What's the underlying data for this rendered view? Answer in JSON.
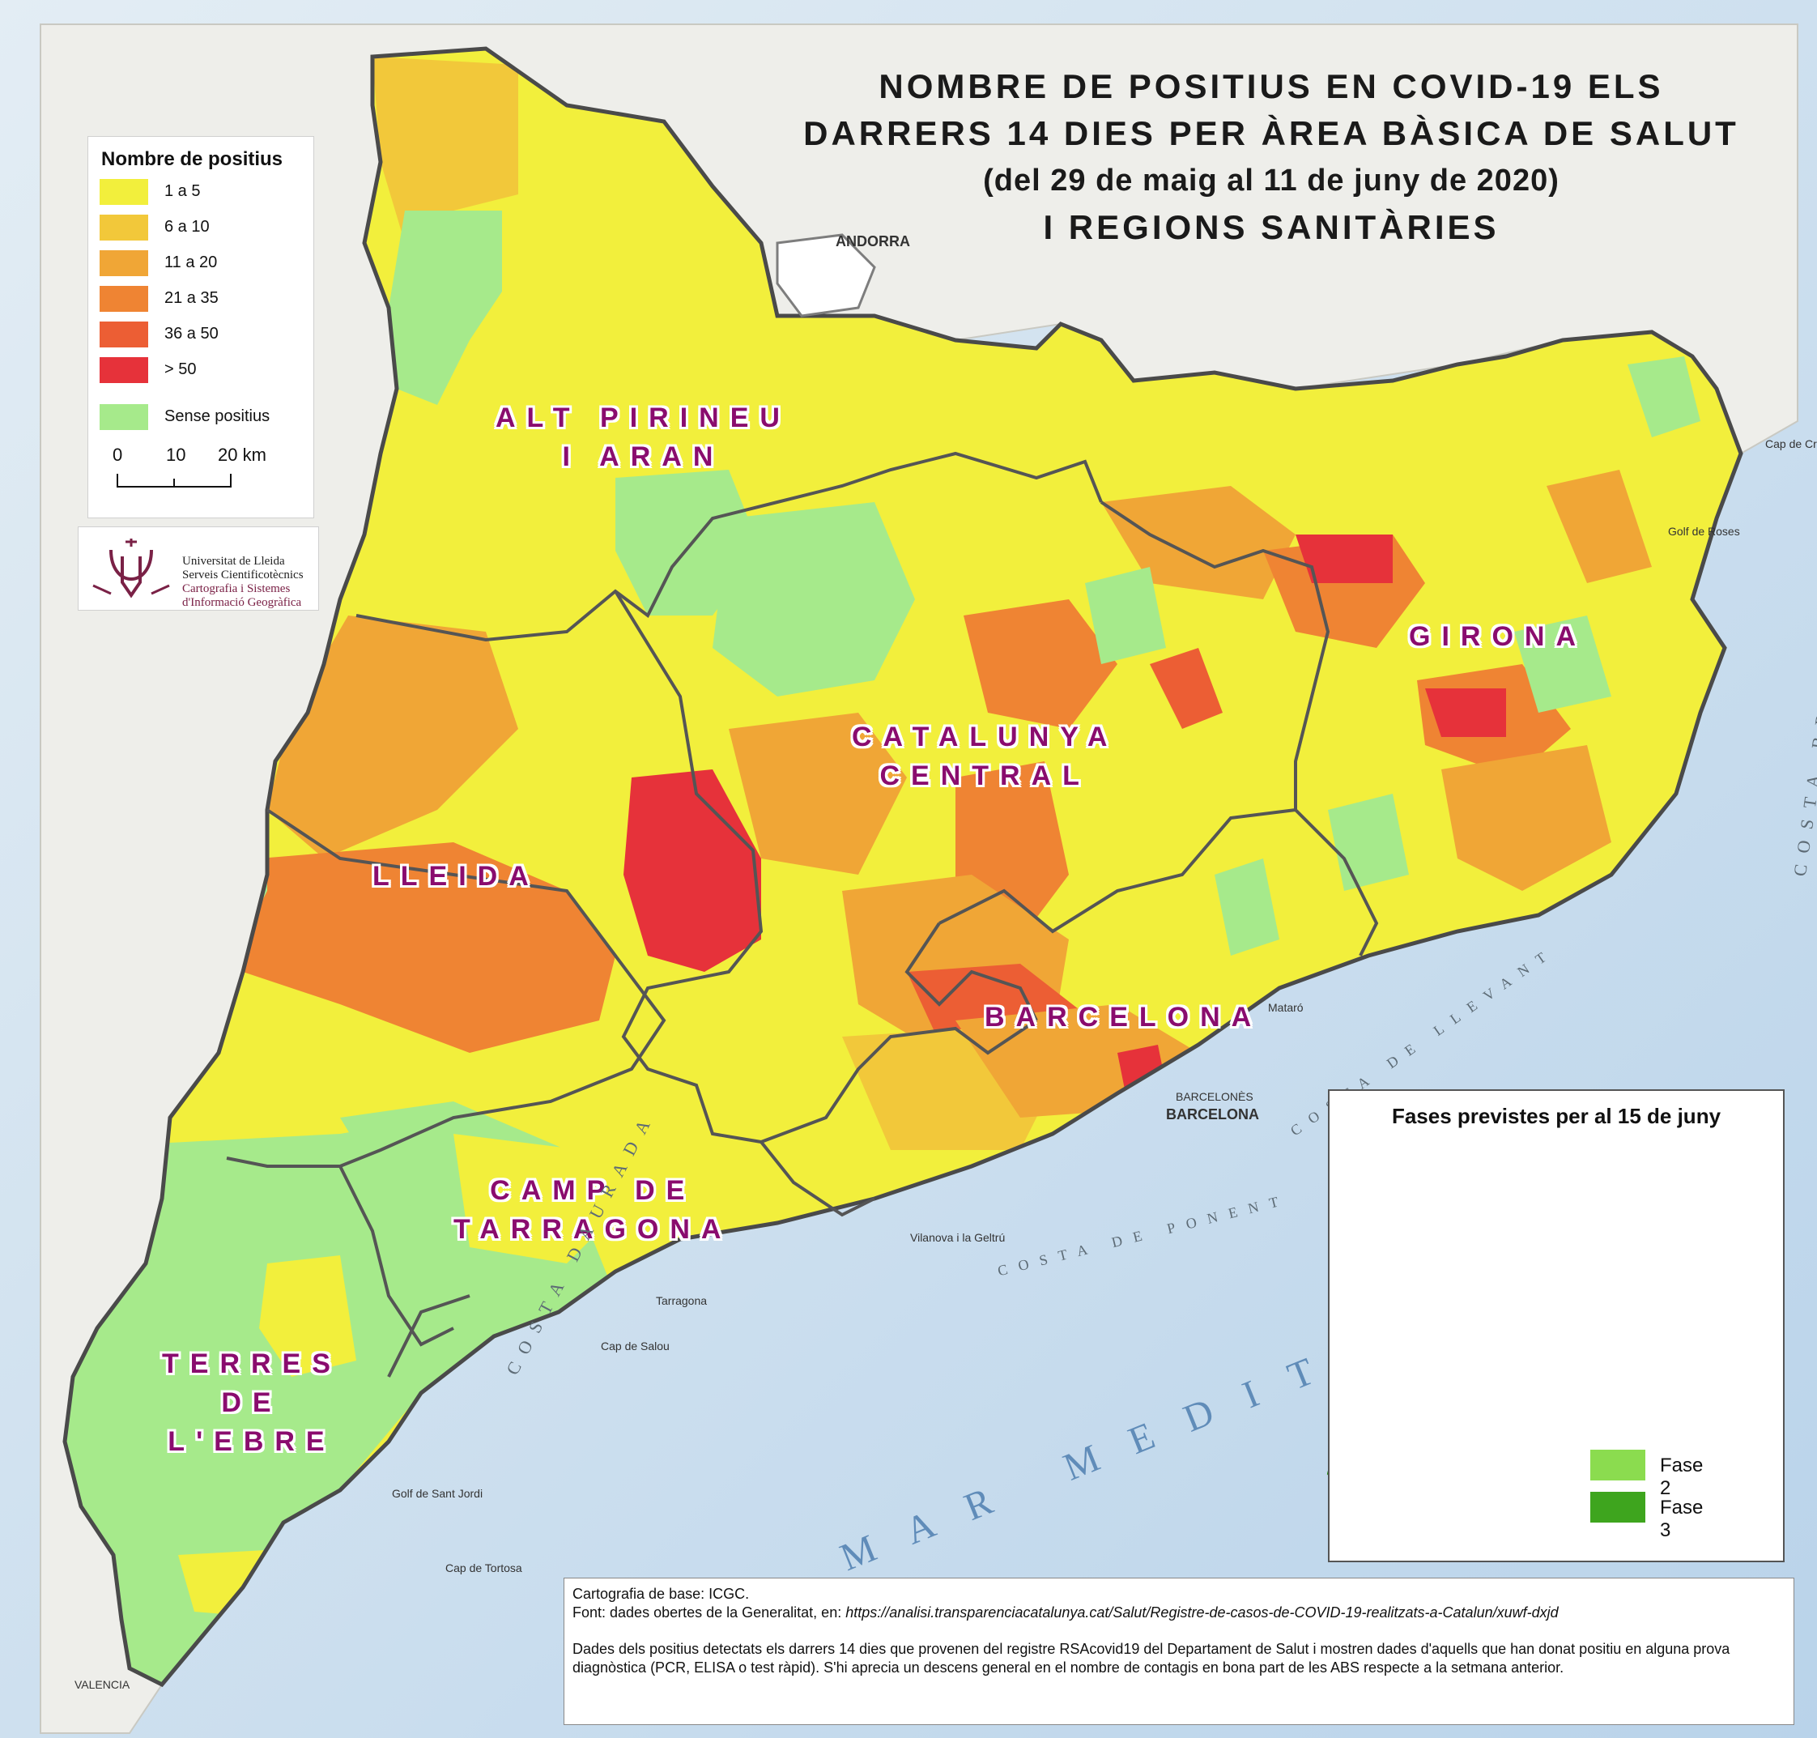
{
  "title": {
    "line1": "NOMBRE DE POSITIUS EN COVID-19 ELS",
    "line2": "DARRERS 14 DIES PER ÀREA BÀSICA DE SALUT",
    "line3": "(del 29 de maig al 11 de juny de 2020)",
    "line4": "I REGIONS SANITÀRIES"
  },
  "legend": {
    "title": "Nombre de positius",
    "items": [
      {
        "label": "1 a 5",
        "color": "#f2ef3c"
      },
      {
        "label": "6 a 10",
        "color": "#f2c83a"
      },
      {
        "label": "11 a 20",
        "color": "#f0a636"
      },
      {
        "label": "21 a 35",
        "color": "#ef8433"
      },
      {
        "label": "36 a 50",
        "color": "#ec5e34"
      },
      {
        "label": "> 50",
        "color": "#e6323a"
      },
      {
        "label": "Sense positius",
        "color": "#a6ea8b"
      }
    ],
    "scale": {
      "t0": "0",
      "t1": "10",
      "t2": "20 km"
    }
  },
  "logo": {
    "name": "Universitat de Lleida",
    "line2": "Serveis Cientificotècnics",
    "line3": "Cartografia i Sistemes",
    "line4": "d'Informació Geogràfica"
  },
  "regions": [
    {
      "name": "ALT PIRINEU",
      "name2": "I ARAN"
    },
    {
      "name": "LLEIDA"
    },
    {
      "name": "CATALUNYA",
      "name2": "CENTRAL"
    },
    {
      "name": "GIRONA"
    },
    {
      "name": "BARCELONA"
    },
    {
      "name": "CAMP DE",
      "name2": "TARRAGONA"
    },
    {
      "name": "TERRES",
      "name2": "DE",
      "name3": "L'EBRE"
    }
  ],
  "places": {
    "andorra": "ANDORRA",
    "barcelona": "BARCELONA",
    "barcelones": "BARCELONÈS",
    "mataro": "Mataró",
    "villanova": "Vilanova i la Geltrú",
    "tarragona": "Tarragona",
    "roses": "Golf de Roses",
    "cap_tortosa": "Cap de Tortosa",
    "cap_salou": "Cap de Salou",
    "golf_sant_jordi": "Golf de Sant Jordi",
    "cap_creus": "Cap de Creus",
    "valencia": "VALENCIA"
  },
  "coasts": {
    "dorada": "COSTA DAURADA",
    "ponent": "COSTA DE PONENT",
    "llevant": "COSTA DE LLEVANT",
    "brava": "COSTA BRAVA",
    "sea": "MAR MEDITE"
  },
  "inset": {
    "title": "Fases previstes per al 15 de juny",
    "items": [
      {
        "label": "Fase 2",
        "color": "#8bdc4f"
      },
      {
        "label": "Fase 3",
        "color": "#3ea51e"
      }
    ]
  },
  "source": {
    "line1": "Cartografia de base: ICGC.",
    "line2_prefix": "Font: dades obertes de la Generalitat, en: ",
    "line2_url": "https://analisi.transparenciacatalunya.cat/Salut/Registre-de-casos-de-COVID-19-realitzats-a-Catalun/xuwf-dxjd",
    "para": "Dades dels positius detectats els darrers 14 dies que provenen del registre RSAcovid19 del Departament de Salut i mostren dades d'aquells que han donat positiu en alguna prova diagnòstica (PCR, ELISA o test ràpid). S'hi aprecia un descens general en el nombre de contagis en bona part de les ABS respecte a la setmana anterior."
  }
}
